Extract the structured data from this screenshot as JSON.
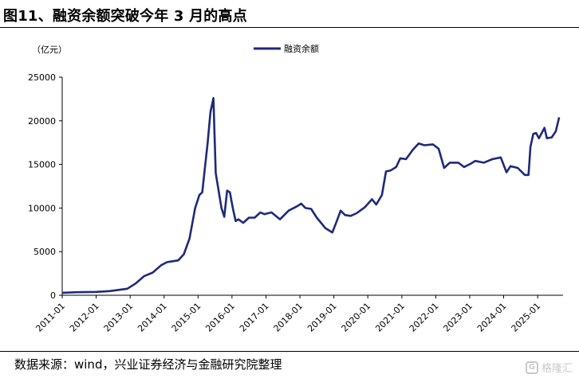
{
  "title": "图11、融资余额突破今年 3 月的高点",
  "source": "数据来源：wind，兴业证券经济与金融研究院整理",
  "watermark": "格隆汇",
  "chart_data": {
    "type": "line",
    "unit": "（亿元）",
    "series": [
      {
        "name": "融资余额",
        "color": "#1f2a7a",
        "points": [
          [
            "2011-01-01",
            280
          ],
          [
            "2011-06-01",
            350
          ],
          [
            "2012-01-01",
            380
          ],
          [
            "2012-06-01",
            480
          ],
          [
            "2012-12-01",
            750
          ],
          [
            "2013-03-01",
            1350
          ],
          [
            "2013-06-01",
            2200
          ],
          [
            "2013-09-01",
            2600
          ],
          [
            "2013-12-01",
            3450
          ],
          [
            "2014-02-01",
            3800
          ],
          [
            "2014-04-01",
            3900
          ],
          [
            "2014-06-01",
            4000
          ],
          [
            "2014-08-01",
            4700
          ],
          [
            "2014-10-01",
            6500
          ],
          [
            "2014-12-01",
            10000
          ],
          [
            "2015-01-15",
            11500
          ],
          [
            "2015-02-15",
            11800
          ],
          [
            "2015-03-15",
            14500
          ],
          [
            "2015-04-15",
            17500
          ],
          [
            "2015-05-15",
            21000
          ],
          [
            "2015-06-15",
            22600
          ],
          [
            "2015-07-10",
            14000
          ],
          [
            "2015-08-10",
            12000
          ],
          [
            "2015-09-10",
            10000
          ],
          [
            "2015-10-10",
            9000
          ],
          [
            "2015-11-10",
            12000
          ],
          [
            "2015-12-10",
            11800
          ],
          [
            "2016-01-10",
            10000
          ],
          [
            "2016-02-10",
            8500
          ],
          [
            "2016-03-10",
            8700
          ],
          [
            "2016-05-01",
            8300
          ],
          [
            "2016-07-01",
            8900
          ],
          [
            "2016-09-01",
            8900
          ],
          [
            "2016-11-01",
            9500
          ],
          [
            "2016-12-15",
            9300
          ],
          [
            "2017-03-01",
            9500
          ],
          [
            "2017-06-01",
            8700
          ],
          [
            "2017-09-01",
            9700
          ],
          [
            "2017-12-01",
            10200
          ],
          [
            "2018-01-15",
            10500
          ],
          [
            "2018-03-01",
            10000
          ],
          [
            "2018-05-01",
            9900
          ],
          [
            "2018-07-01",
            8900
          ],
          [
            "2018-10-01",
            7700
          ],
          [
            "2018-12-15",
            7200
          ],
          [
            "2019-02-01",
            8500
          ],
          [
            "2019-03-15",
            9700
          ],
          [
            "2019-05-01",
            9200
          ],
          [
            "2019-07-01",
            9100
          ],
          [
            "2019-09-01",
            9400
          ],
          [
            "2019-12-01",
            10100
          ],
          [
            "2020-02-15",
            11000
          ],
          [
            "2020-04-01",
            10400
          ],
          [
            "2020-06-01",
            11500
          ],
          [
            "2020-07-15",
            14200
          ],
          [
            "2020-09-01",
            14300
          ],
          [
            "2020-11-01",
            14700
          ],
          [
            "2020-12-15",
            15700
          ],
          [
            "2021-02-15",
            15600
          ],
          [
            "2021-05-01",
            16700
          ],
          [
            "2021-07-01",
            17400
          ],
          [
            "2021-09-01",
            17200
          ],
          [
            "2021-12-01",
            17300
          ],
          [
            "2022-02-01",
            16800
          ],
          [
            "2022-04-01",
            14600
          ],
          [
            "2022-06-01",
            15200
          ],
          [
            "2022-09-01",
            15200
          ],
          [
            "2022-11-01",
            14700
          ],
          [
            "2023-01-15",
            15100
          ],
          [
            "2023-03-01",
            15400
          ],
          [
            "2023-06-01",
            15200
          ],
          [
            "2023-09-01",
            15600
          ],
          [
            "2023-12-01",
            15800
          ],
          [
            "2024-02-01",
            14100
          ],
          [
            "2024-03-15",
            14800
          ],
          [
            "2024-06-01",
            14600
          ],
          [
            "2024-08-15",
            13800
          ],
          [
            "2024-09-25",
            13800
          ],
          [
            "2024-10-15",
            17000
          ],
          [
            "2024-11-15",
            18500
          ],
          [
            "2024-12-15",
            18600
          ],
          [
            "2025-01-15",
            18000
          ],
          [
            "2025-03-15",
            19200
          ],
          [
            "2025-04-10",
            18000
          ],
          [
            "2025-06-01",
            18100
          ],
          [
            "2025-07-15",
            18800
          ],
          [
            "2025-08-20",
            20400
          ]
        ]
      }
    ],
    "xlim": [
      "2011-01-01",
      "2025-10-01"
    ],
    "ylim": [
      0,
      25000
    ],
    "yticks": [
      0,
      5000,
      10000,
      15000,
      20000,
      25000
    ],
    "xticks": [
      "2011-01",
      "2012-01",
      "2013-01",
      "2014-01",
      "2015-01",
      "2016-01",
      "2017-01",
      "2018-01",
      "2019-01",
      "2020-01",
      "2021-01",
      "2022-01",
      "2023-01",
      "2024-01",
      "2025-01"
    ],
    "grid": false,
    "legend_position": "top-center"
  }
}
